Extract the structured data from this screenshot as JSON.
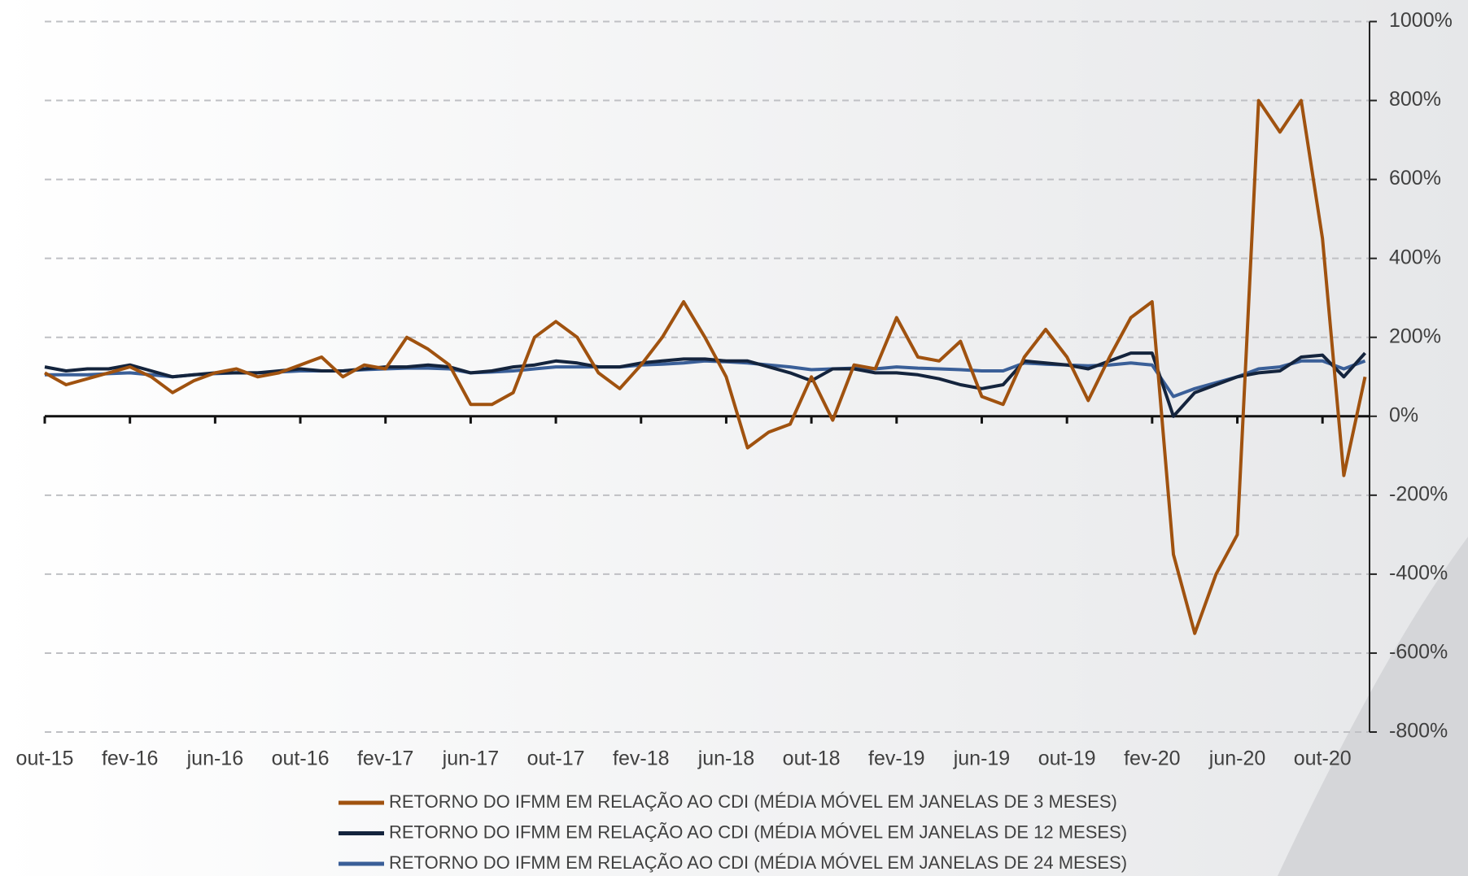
{
  "chart_data": {
    "type": "line",
    "categories": [
      "out-15",
      null,
      null,
      null,
      "fev-16",
      null,
      null,
      null,
      "jun-16",
      null,
      null,
      null,
      "out-16",
      null,
      null,
      null,
      "fev-17",
      null,
      null,
      null,
      "jun-17",
      null,
      null,
      null,
      "out-17",
      null,
      null,
      null,
      "fev-18",
      null,
      null,
      null,
      "jun-18",
      null,
      null,
      null,
      "out-18",
      null,
      null,
      null,
      "fev-19",
      null,
      null,
      null,
      "jun-19",
      null,
      null,
      null,
      "out-19",
      null,
      null,
      null,
      "fev-20",
      null,
      null,
      null,
      "jun-20",
      null,
      null,
      null,
      "out-20",
      null,
      null
    ],
    "series": [
      {
        "name": "RETORNO DO IFMM EM RELAÇÃO AO CDI (MÉDIA MÓVEL EM JANELAS DE 3 MESES)",
        "color": "#a0520f",
        "values": [
          110,
          80,
          95,
          110,
          125,
          100,
          60,
          90,
          110,
          120,
          100,
          110,
          130,
          150,
          100,
          130,
          120,
          200,
          170,
          130,
          30,
          30,
          60,
          200,
          240,
          200,
          110,
          70,
          130,
          200,
          290,
          200,
          100,
          -80,
          -40,
          -20,
          100,
          -10,
          130,
          120,
          250,
          150,
          140,
          190,
          50,
          30,
          150,
          220,
          150,
          40,
          150,
          250,
          290,
          -350,
          -550,
          -400,
          -300,
          800,
          720,
          800,
          450,
          -150,
          100
        ]
      },
      {
        "name": "RETORNO DO IFMM EM RELAÇÃO AO CDI (MÉDIA MÓVEL EM JANELAS DE 12 MESES)",
        "color": "#14243d",
        "values": [
          125,
          115,
          120,
          120,
          130,
          115,
          100,
          105,
          110,
          110,
          110,
          115,
          120,
          115,
          115,
          120,
          125,
          125,
          130,
          125,
          110,
          115,
          125,
          130,
          140,
          135,
          125,
          125,
          135,
          140,
          145,
          145,
          140,
          140,
          125,
          110,
          90,
          120,
          120,
          110,
          110,
          105,
          95,
          80,
          70,
          80,
          140,
          135,
          130,
          120,
          140,
          160,
          160,
          0,
          60,
          80,
          100,
          110,
          115,
          150,
          155,
          100,
          160
        ]
      },
      {
        "name": "RETORNO DO IFMM EM RELAÇÃO AO CDI (MÉDIA MÓVEL EM JANELAS DE 24 MESES)",
        "color": "#3a5f98",
        "values": [
          105,
          105,
          105,
          108,
          110,
          105,
          100,
          105,
          108,
          110,
          110,
          112,
          115,
          115,
          115,
          118,
          120,
          122,
          122,
          120,
          110,
          112,
          115,
          120,
          125,
          125,
          125,
          125,
          130,
          132,
          135,
          140,
          138,
          135,
          130,
          125,
          118,
          120,
          122,
          120,
          125,
          122,
          120,
          118,
          115,
          115,
          135,
          132,
          130,
          128,
          130,
          135,
          130,
          50,
          70,
          85,
          100,
          120,
          125,
          140,
          140,
          120,
          140
        ]
      }
    ],
    "ylim": [
      -800,
      1000
    ],
    "yticks": [
      {
        "value": -800,
        "label": "-800%"
      },
      {
        "value": -600,
        "label": "-600%"
      },
      {
        "value": -400,
        "label": "-400%"
      },
      {
        "value": -200,
        "label": "-200%"
      },
      {
        "value": 0,
        "label": "0%"
      },
      {
        "value": 200,
        "label": "200%"
      },
      {
        "value": 400,
        "label": "400%"
      },
      {
        "value": 600,
        "label": "600%"
      },
      {
        "value": 800,
        "label": "800%"
      },
      {
        "value": 1000,
        "label": "1000%"
      }
    ],
    "grid": true,
    "legend": "bottom"
  }
}
